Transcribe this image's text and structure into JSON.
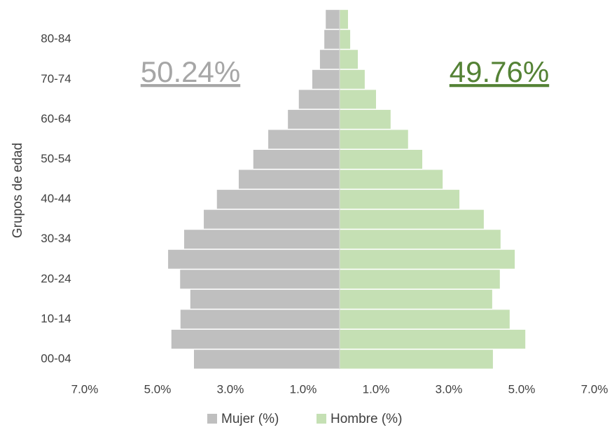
{
  "chart_data": {
    "type": "bar",
    "orientation": "horizontal",
    "categories": [
      "00-04",
      null,
      "10-14",
      null,
      "20-24",
      null,
      "30-34",
      null,
      "40-44",
      null,
      "50-54",
      null,
      "60-64",
      null,
      "70-74",
      null,
      "80-84",
      null
    ],
    "series": [
      {
        "name": "Mujer (%)",
        "color": "#bfbfbf",
        "values": [
          -4.0,
          -4.62,
          -4.37,
          -4.1,
          -4.38,
          -4.71,
          -4.27,
          -3.73,
          -3.37,
          -2.77,
          -2.37,
          -1.96,
          -1.42,
          -1.12,
          -0.75,
          -0.54,
          -0.42,
          -0.38
        ]
      },
      {
        "name": "Hombre (%)",
        "color": "#c5e0b4",
        "values": [
          4.21,
          5.1,
          4.67,
          4.19,
          4.4,
          4.81,
          4.42,
          3.96,
          3.29,
          2.83,
          2.27,
          1.88,
          1.4,
          1.0,
          0.69,
          0.5,
          0.29,
          0.23
        ]
      }
    ],
    "y_label": "Grupos de edad",
    "xlim": [
      -7,
      7
    ],
    "xticks": [
      {
        "value": -7,
        "label": "7.0%"
      },
      {
        "value": -5,
        "label": "5.0%"
      },
      {
        "value": -3,
        "label": "3.0%"
      },
      {
        "value": -1,
        "label": "1.0%"
      },
      {
        "value": 1,
        "label": "1.0%"
      },
      {
        "value": 3,
        "label": "3.0%"
      },
      {
        "value": 5,
        "label": "5.0%"
      },
      {
        "value": 7,
        "label": "7.0%"
      }
    ],
    "annotations": [
      {
        "text": "50.24%",
        "color": "#a6a6a6"
      },
      {
        "text": "49.76%",
        "color": "#548235"
      }
    ],
    "legend": "bottom"
  }
}
